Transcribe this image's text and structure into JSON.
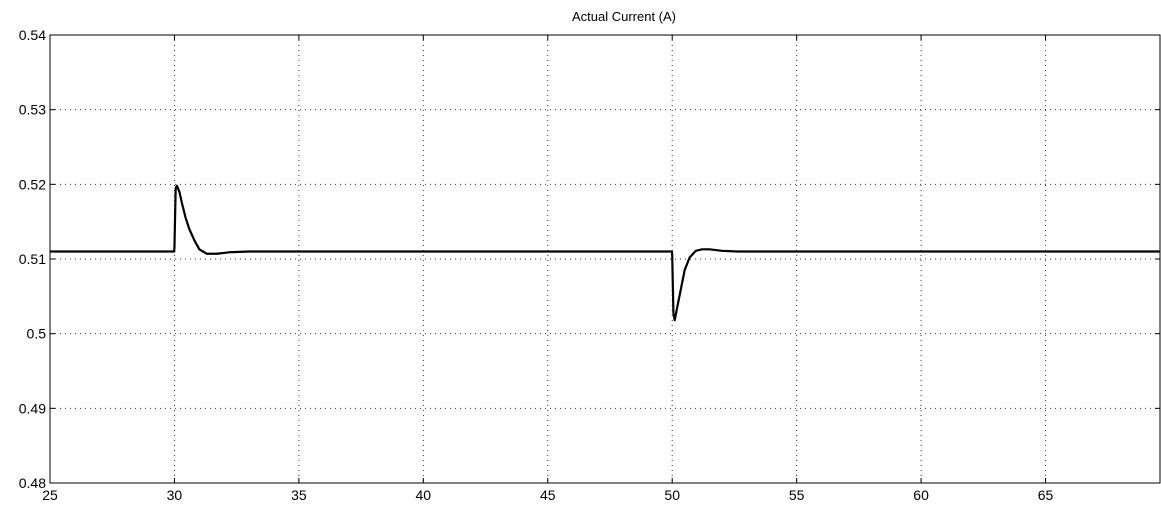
{
  "chart_data": {
    "type": "line",
    "title": "Actual Current (A)",
    "xlabel": "",
    "ylabel": "",
    "xlim": [
      25,
      69.6
    ],
    "ylim": [
      0.48,
      0.54
    ],
    "x_ticks": [
      25,
      30,
      35,
      40,
      45,
      50,
      55,
      60,
      65
    ],
    "y_ticks": [
      0.48,
      0.49,
      0.5,
      0.51,
      0.52,
      0.53,
      0.54
    ],
    "x_tick_labels": [
      "25",
      "30",
      "35",
      "40",
      "45",
      "50",
      "55",
      "60",
      "65"
    ],
    "y_tick_labels": [
      "0.48",
      "0.49",
      "0.5",
      "0.51",
      "0.52",
      "0.53",
      "0.54"
    ],
    "grid": true,
    "line_color": "#000000",
    "series": [
      {
        "x": [
          25,
          29.99,
          30.0,
          30.05,
          30.1,
          30.2,
          30.3,
          30.45,
          30.6,
          30.8,
          31.0,
          31.3,
          31.7,
          32.2,
          33.0,
          35.0,
          49.99,
          50.0,
          50.05,
          50.1,
          50.2,
          50.35,
          50.5,
          50.7,
          50.95,
          51.2,
          51.5,
          52.0,
          52.6,
          53.5,
          55.0,
          69.6
        ],
        "y": [
          0.511,
          0.511,
          0.5115,
          0.5195,
          0.5198,
          0.519,
          0.5175,
          0.5155,
          0.514,
          0.5125,
          0.5113,
          0.5107,
          0.5107,
          0.5109,
          0.511,
          0.511,
          0.511,
          0.5105,
          0.5027,
          0.5018,
          0.5035,
          0.506,
          0.5085,
          0.5102,
          0.5111,
          0.5113,
          0.5113,
          0.5111,
          0.511,
          0.511,
          0.511,
          0.511
        ]
      }
    ]
  }
}
